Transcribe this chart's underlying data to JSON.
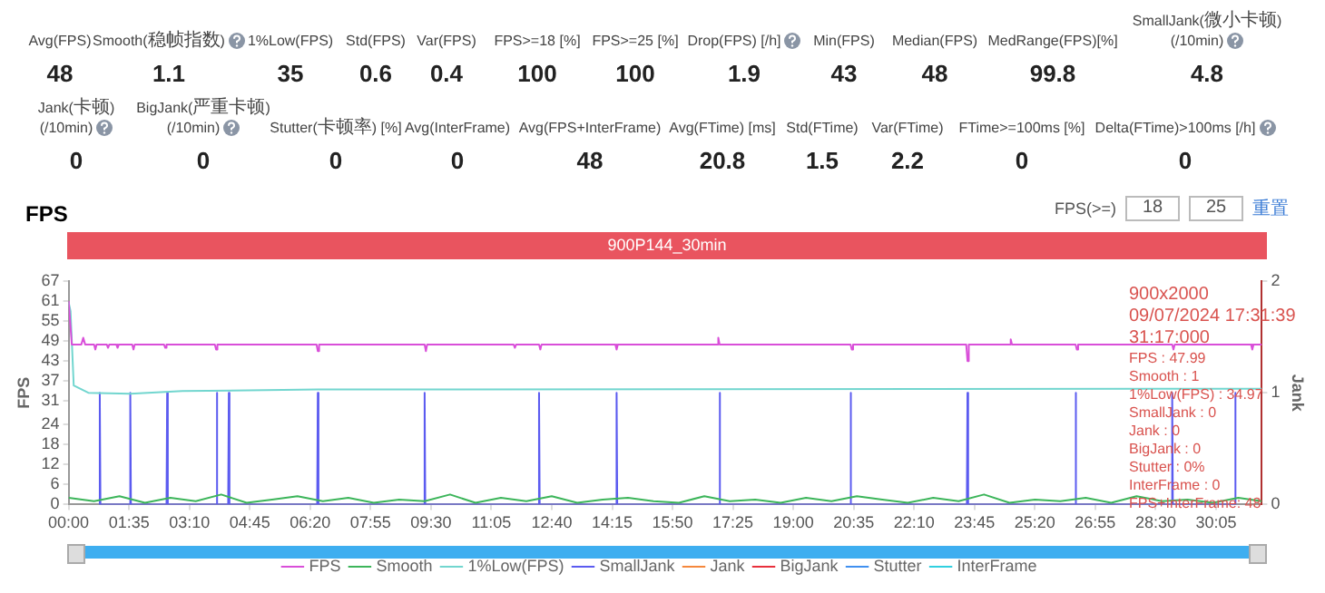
{
  "chart_data": [
    {
      "type": "other",
      "annotations": [
        "Avg(FPS)",
        "48",
        "Smooth(稳帧指数)",
        "1.1",
        "1%Low(FPS)",
        "35",
        "Std(FPS)",
        "0.6",
        "Var(FPS)",
        "0.4",
        "FPS>=18 [%]",
        "100",
        "FPS>=25 [%]",
        "100",
        "Drop(FPS) [/h]",
        "1.9",
        "Min(FPS)",
        "43",
        "Median(FPS)",
        "48",
        "MedRange(FPS)[%]",
        "99.8",
        "SmallJank(微小卡顿)(/10min)",
        "4.8",
        "Jank(卡顿)(/10min)",
        "0",
        "BigJank(严重卡顿)(/10min)",
        "0",
        "Stutter(卡顿率) [%]",
        "0",
        "Avg(InterFrame)",
        "0",
        "Avg(FPS+InterFrame)",
        "48",
        "Avg(FTime) [ms]",
        "20.8",
        "Std(FTime)",
        "1.5",
        "Var(FTime)",
        "2.2",
        "FTime>=100ms [%]",
        "0",
        "Delta(FTime)>100ms [/h]",
        "0"
      ]
    },
    {
      "type": "line",
      "title": "FPS",
      "subtitle": "900P144_30min",
      "ylabel": "FPS",
      "y2label": "Jank",
      "xlim": [
        0,
        1877
      ],
      "xticks": [
        {
          "value": 0,
          "label": "00:00"
        },
        {
          "value": 95,
          "label": "01:35"
        },
        {
          "value": 190,
          "label": "03:10"
        },
        {
          "value": 285,
          "label": "04:45"
        },
        {
          "value": 380,
          "label": "06:20"
        },
        {
          "value": 475,
          "label": "07:55"
        },
        {
          "value": 570,
          "label": "09:30"
        },
        {
          "value": 665,
          "label": "11:05"
        },
        {
          "value": 760,
          "label": "12:40"
        },
        {
          "value": 855,
          "label": "14:15"
        },
        {
          "value": 950,
          "label": "15:50"
        },
        {
          "value": 1045,
          "label": "17:25"
        },
        {
          "value": 1140,
          "label": "19:00"
        },
        {
          "value": 1235,
          "label": "20:35"
        },
        {
          "value": 1330,
          "label": "22:10"
        },
        {
          "value": 1425,
          "label": "23:45"
        },
        {
          "value": 1520,
          "label": "25:20"
        },
        {
          "value": 1615,
          "label": "26:55"
        },
        {
          "value": 1710,
          "label": "28:30"
        },
        {
          "value": 1805,
          "label": "30:05"
        }
      ],
      "ylim": [
        0,
        67
      ],
      "yticks": [
        0,
        6,
        12,
        18,
        24,
        31,
        37,
        43,
        49,
        55,
        61,
        67
      ],
      "y2lim": [
        0,
        2
      ],
      "y2ticks": [
        0,
        1,
        2
      ],
      "grid": false,
      "legend": "bottom",
      "marker": "none",
      "line_style": "solid",
      "annotations": [
        "FPS(>=)",
        "18",
        "25",
        "重置",
        "900x2000",
        "09/07/2024 17:31:39",
        "31:17:000",
        "FPS : 47.99",
        "Smooth : 1",
        "1%Low(FPS) : 34.97",
        "SmallJank : 0",
        "Jank : 0",
        "BigJank : 0",
        "Stutter : 0%",
        "InterFrame : 0",
        "FPS+InterFrame: 48"
      ],
      "series": [
        {
          "name": "FPS",
          "color": "#d94fd9",
          "x": [
            0,
            5,
            20,
            23,
            26,
            40,
            42,
            44,
            60,
            62,
            64,
            75,
            77,
            79,
            100,
            102,
            104,
            150,
            152,
            154,
            230,
            232,
            234,
            390,
            392,
            394,
            560,
            562,
            564,
            700,
            702,
            704,
            740,
            742,
            744,
            860,
            862,
            864,
            1020,
            1022,
            1024,
            1230,
            1232,
            1234,
            1412,
            1414,
            1416,
            1480,
            1482,
            1484,
            1584,
            1586,
            1588,
            1736,
            1738,
            1740,
            1860,
            1862,
            1864,
            1877
          ],
          "values": [
            61,
            48,
            48,
            50,
            48,
            48,
            46.5,
            48,
            48,
            47,
            48,
            48,
            47,
            48,
            48,
            46.5,
            48,
            48,
            47,
            48,
            48,
            46.5,
            48,
            48,
            46,
            48,
            48,
            46,
            48,
            48,
            47,
            48,
            48,
            46.5,
            48,
            48,
            46.5,
            48,
            48,
            50,
            48,
            48,
            46.5,
            48,
            48,
            43,
            48,
            48,
            49.5,
            48,
            48,
            46.5,
            48,
            48,
            46.5,
            48,
            48,
            46.5,
            48,
            48
          ]
        },
        {
          "name": "Smooth",
          "color": "#3cb55a",
          "x": [
            0,
            40,
            80,
            120,
            160,
            200,
            240,
            280,
            320,
            360,
            400,
            440,
            480,
            520,
            560,
            600,
            640,
            680,
            720,
            760,
            800,
            840,
            880,
            920,
            960,
            1000,
            1040,
            1080,
            1120,
            1160,
            1200,
            1240,
            1280,
            1320,
            1360,
            1400,
            1440,
            1480,
            1520,
            1560,
            1600,
            1640,
            1680,
            1720,
            1760,
            1800,
            1840,
            1877
          ],
          "values": [
            2,
            1,
            2.5,
            0.5,
            2,
            1,
            3,
            0.5,
            1.5,
            2.5,
            1,
            2,
            0.5,
            1.5,
            1,
            3,
            0.5,
            2,
            1,
            2.5,
            0.5,
            1.5,
            2,
            1,
            0.5,
            2.5,
            1,
            1.5,
            0.5,
            2,
            1,
            2.5,
            1.5,
            0.5,
            2,
            1,
            3,
            0.5,
            1.5,
            1,
            2,
            0.5,
            2.5,
            1,
            1.5,
            0.5,
            2,
            1
          ]
        },
        {
          "name": "1%Low(FPS)",
          "color": "#72d6cf",
          "x": [
            0,
            3,
            8,
            31,
            97,
            179,
            392,
            1000,
            1877
          ],
          "values": [
            60.6,
            58,
            35.7,
            33.5,
            33.2,
            34,
            34.5,
            34.6,
            34.7
          ]
        },
        {
          "name": "SmallJank",
          "color": "#5b5bf0",
          "axis": "y2",
          "x": [
            48,
            49,
            50,
            95,
            97,
            98,
            154,
            155,
            156,
            232,
            233,
            234,
            251,
            252,
            253,
            391,
            392,
            393,
            559,
            560,
            561,
            739,
            740,
            741,
            861,
            862,
            863,
            1023,
            1024,
            1025,
            1229,
            1230,
            1231,
            1413,
            1414,
            1415,
            1583,
            1584,
            1585,
            1735,
            1736,
            1737,
            1834,
            1835,
            1836
          ],
          "values": [
            0,
            1,
            0,
            0,
            1,
            0,
            0,
            1,
            0,
            0,
            1,
            0,
            0,
            1,
            0,
            0,
            1,
            0,
            0,
            1,
            0,
            0,
            1,
            0,
            0,
            1,
            0,
            0,
            1,
            0,
            0,
            1,
            0,
            0,
            1,
            0,
            0,
            1,
            0,
            0,
            1,
            0,
            0,
            1,
            0
          ]
        },
        {
          "name": "Jank",
          "color": "#f5883c",
          "axis": "y2"
        },
        {
          "name": "BigJank",
          "color": "#e8303c",
          "axis": "y2"
        },
        {
          "name": "Stutter",
          "color": "#4090f0",
          "axis": "y2"
        },
        {
          "name": "InterFrame",
          "color": "#30d0e0"
        }
      ]
    }
  ]
}
